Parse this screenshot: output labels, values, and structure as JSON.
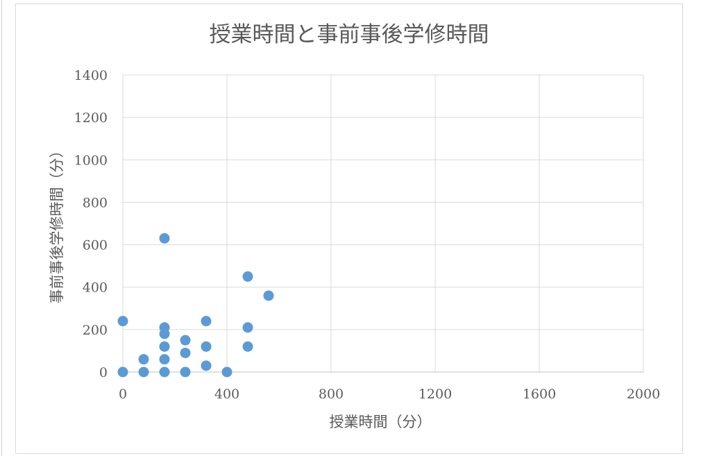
{
  "chart_data": {
    "type": "scatter",
    "title": "授業時間と事前事後学修時間",
    "xlabel": "授業時間（分）",
    "ylabel": "事前事後学修時間（分）",
    "xlim": [
      0,
      2000
    ],
    "ylim": [
      0,
      1400
    ],
    "x_ticks": [
      0,
      400,
      800,
      1200,
      1600,
      2000
    ],
    "y_ticks": [
      0,
      200,
      400,
      600,
      800,
      1000,
      1200,
      1400
    ],
    "grid": true,
    "legend": "none",
    "marker_color": "#5b9bd5",
    "points": [
      {
        "x": 0,
        "y": 0
      },
      {
        "x": 0,
        "y": 240
      },
      {
        "x": 80,
        "y": 0
      },
      {
        "x": 80,
        "y": 60
      },
      {
        "x": 160,
        "y": 0
      },
      {
        "x": 160,
        "y": 60
      },
      {
        "x": 160,
        "y": 120
      },
      {
        "x": 160,
        "y": 180
      },
      {
        "x": 160,
        "y": 210
      },
      {
        "x": 160,
        "y": 630
      },
      {
        "x": 240,
        "y": 0
      },
      {
        "x": 240,
        "y": 90
      },
      {
        "x": 240,
        "y": 150
      },
      {
        "x": 320,
        "y": 30
      },
      {
        "x": 320,
        "y": 120
      },
      {
        "x": 320,
        "y": 240
      },
      {
        "x": 400,
        "y": 0
      },
      {
        "x": 480,
        "y": 120
      },
      {
        "x": 480,
        "y": 210
      },
      {
        "x": 480,
        "y": 450
      },
      {
        "x": 560,
        "y": 360
      }
    ]
  }
}
